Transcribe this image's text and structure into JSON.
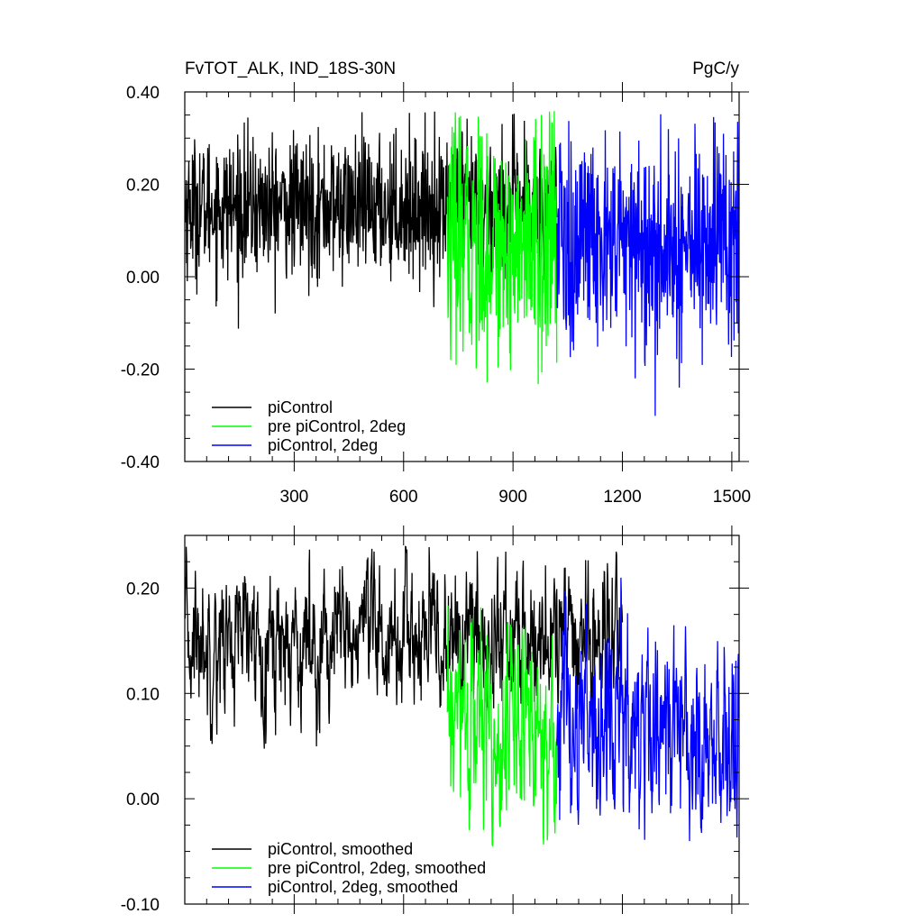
{
  "figure": {
    "title_left": "FvTOT_ALK, IND_18S-30N",
    "title_right": "PgC/y"
  },
  "chart_data": [
    {
      "type": "line",
      "title": "FvTOT_ALK, IND_18S-30N",
      "units": "PgC/y",
      "xlabel": "",
      "ylabel": "",
      "xlim": [
        0,
        1520
      ],
      "ylim": [
        -0.4,
        0.4
      ],
      "xticks": [
        300,
        600,
        900,
        1200,
        1500
      ],
      "xtick_labels": [
        "300",
        "600",
        "900",
        "1200",
        "1500"
      ],
      "yticks": [
        -0.4,
        -0.2,
        0.0,
        0.2,
        0.4
      ],
      "ytick_labels": [
        "-0.40",
        "-0.20",
        "0.00",
        "0.20",
        "0.40"
      ],
      "grid": false,
      "legend_position": "bottom-left",
      "series": [
        {
          "name": "piControl",
          "color": "#000000",
          "x_start": 1,
          "x_end": 1020,
          "mean": 0.15,
          "spread": 0.075,
          "min": -0.2,
          "max": 0.36
        },
        {
          "name": "pre piControl, 2deg",
          "color": "#00ff00",
          "x_start": 720,
          "x_end": 1020,
          "mean": 0.07,
          "spread": 0.13,
          "min": -0.35,
          "max": 0.36
        },
        {
          "name": "piControl, 2deg",
          "color": "#0000ff",
          "x_start": 1020,
          "x_end": 1520,
          "mean": 0.07,
          "spread": 0.12,
          "min": -0.37,
          "max": 0.36
        }
      ]
    },
    {
      "type": "line",
      "title": "",
      "xlabel": "",
      "ylabel": "",
      "xlim": [
        0,
        1520
      ],
      "ylim": [
        -0.1,
        0.25
      ],
      "xticks": [
        300,
        600,
        900,
        1200,
        1500
      ],
      "yticks": [
        -0.1,
        0.0,
        0.1,
        0.2
      ],
      "ytick_labels": [
        "-0.10",
        "0.00",
        "0.10",
        "0.20"
      ],
      "grid": false,
      "legend_position": "bottom-left",
      "series": [
        {
          "name": "piControl, smoothed",
          "color": "#000000",
          "x_start": 1,
          "x_end": 1200,
          "mean": 0.15,
          "spread": 0.035,
          "min": 0.047,
          "max": 0.24
        },
        {
          "name": "pre piControl, 2deg, smoothed",
          "color": "#00ff00",
          "x_start": 720,
          "x_end": 1020,
          "mean": 0.07,
          "spread": 0.05,
          "min": -0.047,
          "max": 0.195
        },
        {
          "name": "piControl, 2deg, smoothed",
          "color": "#0000ff",
          "x_start": 1020,
          "x_end": 1520,
          "mean": 0.07,
          "spread": 0.05,
          "min": -0.087,
          "max": 0.21
        }
      ]
    }
  ]
}
